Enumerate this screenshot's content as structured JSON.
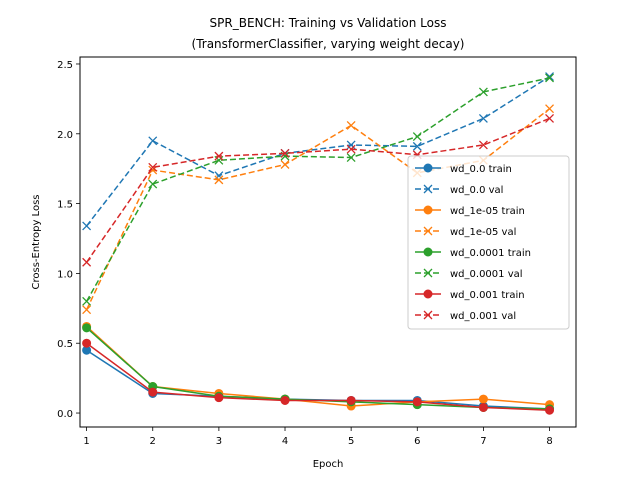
{
  "chart_data": {
    "type": "line",
    "title": "SPR_BENCH: Training vs Validation Loss",
    "subtitle": "(TransformerClassifier, varying weight decay)",
    "xlabel": "Epoch",
    "ylabel": "Cross-Entropy Loss",
    "x": [
      1,
      2,
      3,
      4,
      5,
      6,
      7,
      8
    ],
    "xticks": [
      "1",
      "2",
      "3",
      "4",
      "5",
      "6",
      "7",
      "8"
    ],
    "yticks": [
      "0.0",
      "0.5",
      "1.0",
      "1.5",
      "2.0",
      "2.5"
    ],
    "xlim": [
      0.9,
      8.4
    ],
    "ylim": [
      -0.1,
      2.55
    ],
    "grid": false,
    "legend_position": "center-right",
    "series": [
      {
        "name": "wd_0.0 train",
        "color": "#1f77b4",
        "style": "solid",
        "marker": "circle",
        "values": [
          0.45,
          0.14,
          0.12,
          0.1,
          0.09,
          0.09,
          0.05,
          0.03
        ]
      },
      {
        "name": "wd_0.0 val",
        "color": "#1f77b4",
        "style": "dashed",
        "marker": "x",
        "values": [
          1.34,
          1.95,
          1.7,
          1.86,
          1.92,
          1.91,
          2.11,
          2.41
        ]
      },
      {
        "name": "wd_1e-05 train",
        "color": "#ff7f0e",
        "style": "solid",
        "marker": "circle",
        "values": [
          0.62,
          0.19,
          0.14,
          0.1,
          0.05,
          0.08,
          0.1,
          0.06
        ]
      },
      {
        "name": "wd_1e-05 val",
        "color": "#ff7f0e",
        "style": "dashed",
        "marker": "x",
        "values": [
          0.74,
          1.74,
          1.67,
          1.78,
          2.06,
          1.72,
          1.81,
          2.18
        ]
      },
      {
        "name": "wd_0.0001 train",
        "color": "#2ca02c",
        "style": "solid",
        "marker": "circle",
        "values": [
          0.61,
          0.19,
          0.12,
          0.1,
          0.08,
          0.06,
          0.04,
          0.03
        ]
      },
      {
        "name": "wd_0.0001 val",
        "color": "#2ca02c",
        "style": "dashed",
        "marker": "x",
        "values": [
          0.8,
          1.64,
          1.81,
          1.84,
          1.83,
          1.98,
          2.3,
          2.4
        ]
      },
      {
        "name": "wd_0.001 train",
        "color": "#d62728",
        "style": "solid",
        "marker": "circle",
        "values": [
          0.5,
          0.15,
          0.11,
          0.09,
          0.09,
          0.08,
          0.04,
          0.02
        ]
      },
      {
        "name": "wd_0.001 val",
        "color": "#d62728",
        "style": "dashed",
        "marker": "x",
        "values": [
          1.08,
          1.76,
          1.84,
          1.86,
          1.89,
          1.85,
          1.92,
          2.11
        ]
      }
    ]
  }
}
